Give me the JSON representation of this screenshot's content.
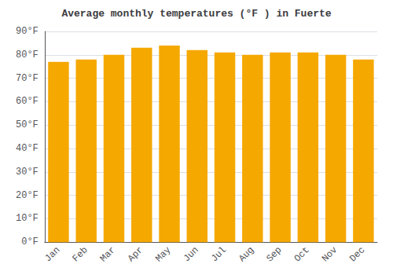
{
  "chart_data": {
    "type": "bar",
    "title": "Average monthly temperatures (°F ) in Fuerte",
    "categories": [
      "Jan",
      "Feb",
      "Mar",
      "Apr",
      "May",
      "Jun",
      "Jul",
      "Aug",
      "Sep",
      "Oct",
      "Nov",
      "Dec"
    ],
    "values": [
      77,
      78,
      80,
      83,
      84,
      82,
      81,
      80,
      81,
      81,
      80,
      78
    ],
    "color": "#F5A800",
    "ylim": [
      0,
      90
    ],
    "yticks": [
      {
        "value": 0,
        "label": "0°F"
      },
      {
        "value": 10,
        "label": "10°F"
      },
      {
        "value": 20,
        "label": "20°F"
      },
      {
        "value": 30,
        "label": "30°F"
      },
      {
        "value": 40,
        "label": "40°F"
      },
      {
        "value": 50,
        "label": "50°F"
      },
      {
        "value": 60,
        "label": "60°F"
      },
      {
        "value": 70,
        "label": "70°F"
      },
      {
        "value": 80,
        "label": "80°F"
      },
      {
        "value": 90,
        "label": "90°F"
      }
    ],
    "grid": true
  }
}
